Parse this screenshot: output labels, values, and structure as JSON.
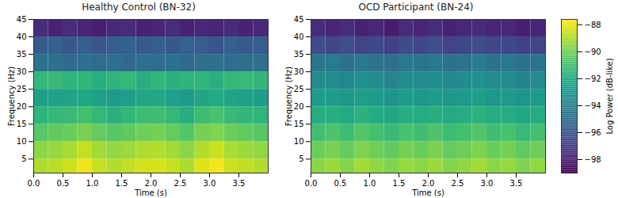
{
  "chart_data": [
    {
      "type": "heatmap",
      "title": "Healthy Control (BN-32)",
      "x_label": "Time (s)",
      "y_label": "Frequency (Hz)",
      "xlim": [
        0,
        4
      ],
      "xticks": [
        {
          "value": 0,
          "label": "0.0"
        },
        0.5,
        {
          "value": 1,
          "label": "1.0"
        },
        1.5,
        {
          "value": 2,
          "label": "2.0"
        },
        2.5,
        {
          "value": 3,
          "label": "3.0"
        },
        3.5
      ],
      "ylim": [
        1,
        45
      ],
      "yticks": [
        5,
        10,
        15,
        20,
        25,
        30,
        35,
        40,
        45
      ],
      "time_edges": [
        0,
        0.25,
        0.5,
        0.75,
        1,
        1.25,
        1.5,
        1.75,
        2,
        2.25,
        2.5,
        2.75,
        3,
        3.25,
        3.5,
        3.75,
        4
      ],
      "freq_edges": [
        1,
        5,
        10,
        15,
        20,
        25,
        30,
        35,
        40,
        45
      ],
      "power": [
        [
          -89.0,
          -88.8,
          -88.5,
          -87.9,
          -88.6,
          -88.9,
          -88.7,
          -88.4,
          -88.3,
          -88.6,
          -89.0,
          -88.2,
          -87.8,
          -88.5,
          -88.7,
          -88.9
        ],
        [
          -89.6,
          -89.4,
          -89.1,
          -88.6,
          -89.2,
          -89.5,
          -89.3,
          -89.0,
          -88.9,
          -89.2,
          -89.6,
          -88.9,
          -88.5,
          -89.1,
          -89.3,
          -89.5
        ],
        [
          -90.6,
          -90.4,
          -90.2,
          -89.9,
          -90.3,
          -90.6,
          -90.4,
          -90.1,
          -90.0,
          -90.3,
          -90.7,
          -90.0,
          -89.8,
          -90.2,
          -90.4,
          -90.6
        ],
        [
          -91.6,
          -91.4,
          -91.3,
          -91.0,
          -91.4,
          -91.7,
          -91.5,
          -91.2,
          -91.1,
          -91.4,
          -91.8,
          -91.2,
          -90.9,
          -91.3,
          -91.5,
          -91.6
        ],
        [
          -92.6,
          -92.5,
          -92.4,
          -92.2,
          -92.5,
          -92.8,
          -92.6,
          -92.3,
          -92.2,
          -92.5,
          -92.8,
          -92.3,
          -92.1,
          -92.4,
          -92.6,
          -92.7
        ],
        [
          -91.4,
          -91.3,
          -91.6,
          -91.5,
          -91.8,
          -91.6,
          -91.4,
          -91.9,
          -91.5,
          -91.7,
          -91.6,
          -91.5,
          -91.8,
          -91.4,
          -91.3,
          -91.5
        ],
        [
          -94.8,
          -94.9,
          -95.1,
          -94.7,
          -95.0,
          -94.8,
          -95.2,
          -94.9,
          -95.0,
          -94.7,
          -95.1,
          -94.9,
          -94.8,
          -95.0,
          -94.9,
          -94.8
        ],
        [
          -95.8,
          -95.5,
          -95.9,
          -95.6,
          -96.0,
          -95.7,
          -95.4,
          -95.8,
          -95.6,
          -95.9,
          -95.5,
          -95.7,
          -96.0,
          -95.6,
          -95.8,
          -95.7
        ],
        [
          -97.6,
          -97.9,
          -97.5,
          -97.8,
          -98.0,
          -97.7,
          -97.6,
          -97.9,
          -97.8,
          -97.5,
          -97.9,
          -97.7,
          -97.8,
          -97.6,
          -97.9,
          -97.7
        ]
      ]
    },
    {
      "type": "heatmap",
      "title": "OCD Participant (BN-24)",
      "x_label": "Time (s)",
      "y_label": "Frequency (Hz)",
      "xlim": [
        0,
        4
      ],
      "xticks": [
        {
          "value": 0,
          "label": "0.0"
        },
        0.5,
        {
          "value": 1,
          "label": "1.0"
        },
        1.5,
        {
          "value": 2,
          "label": "2.0"
        },
        2.5,
        {
          "value": 3,
          "label": "3.0"
        },
        3.5
      ],
      "ylim": [
        1,
        45
      ],
      "yticks": [
        5,
        10,
        15,
        20,
        25,
        30,
        35,
        40,
        45
      ],
      "time_edges": [
        0,
        0.25,
        0.5,
        0.75,
        1,
        1.25,
        1.5,
        1.75,
        2,
        2.25,
        2.5,
        2.75,
        3,
        3.25,
        3.5,
        3.75,
        4
      ],
      "freq_edges": [
        1,
        5,
        10,
        15,
        20,
        25,
        30,
        35,
        40,
        45
      ],
      "power": [
        [
          -89.6,
          -89.3,
          -89.7,
          -89.2,
          -89.5,
          -89.8,
          -89.4,
          -89.6,
          -89.3,
          -89.7,
          -89.5,
          -89.2,
          -89.6,
          -89.4,
          -89.8,
          -89.5
        ],
        [
          -90.2,
          -89.9,
          -90.3,
          -89.8,
          -90.1,
          -90.4,
          -90.0,
          -90.2,
          -89.9,
          -90.3,
          -90.1,
          -89.8,
          -90.2,
          -90.0,
          -90.4,
          -90.1
        ],
        [
          -91.1,
          -90.8,
          -91.2,
          -90.7,
          -91.0,
          -91.3,
          -90.9,
          -91.1,
          -90.8,
          -91.2,
          -91.0,
          -90.7,
          -91.1,
          -90.9,
          -91.3,
          -91.0
        ],
        [
          -92.0,
          -91.8,
          -92.1,
          -91.7,
          -92.0,
          -92.2,
          -91.9,
          -92.0,
          -91.8,
          -92.1,
          -91.9,
          -91.7,
          -92.0,
          -91.9,
          -92.2,
          -92.0
        ],
        [
          -92.8,
          -92.7,
          -92.9,
          -92.6,
          -92.8,
          -93.0,
          -92.7,
          -92.9,
          -92.7,
          -92.9,
          -92.8,
          -92.6,
          -92.9,
          -92.8,
          -93.0,
          -92.8
        ],
        [
          -93.6,
          -93.4,
          -93.7,
          -93.3,
          -93.5,
          -93.8,
          -93.5,
          -93.6,
          -93.4,
          -93.7,
          -93.5,
          -93.3,
          -93.6,
          -93.5,
          -93.8,
          -93.6
        ],
        [
          -94.6,
          -94.3,
          -94.8,
          -94.4,
          -94.7,
          -94.9,
          -94.5,
          -94.6,
          -94.4,
          -94.8,
          -94.6,
          -94.3,
          -94.7,
          -94.5,
          -94.8,
          -94.6
        ],
        [
          -96.4,
          -96.6,
          -96.3,
          -96.7,
          -96.5,
          -96.8,
          -96.4,
          -96.6,
          -96.3,
          -96.7,
          -96.5,
          -96.4,
          -96.6,
          -96.5,
          -96.8,
          -96.6
        ],
        [
          -97.6,
          -97.8,
          -97.5,
          -97.9,
          -97.7,
          -98.1,
          -97.6,
          -97.8,
          -97.5,
          -97.9,
          -97.7,
          -97.6,
          -97.8,
          -97.7,
          -98.0,
          -97.8
        ]
      ],
      "colorbar": {
        "label": "Log Power (dB-like)",
        "range": [
          -99,
          -87.6
        ],
        "ticks": [
          -88,
          -90,
          -92,
          -94,
          -96,
          -98
        ]
      }
    }
  ]
}
